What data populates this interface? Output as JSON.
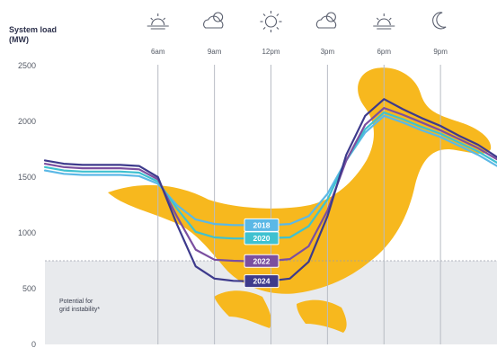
{
  "chart_data": {
    "type": "line",
    "ylabel_lines": [
      "System load",
      "(MW)"
    ],
    "yticks": [
      "2500",
      "2000",
      "1500",
      "1000",
      "500",
      "0"
    ],
    "ylim": [
      0,
      2500
    ],
    "xlim": [
      0,
      24
    ],
    "time_markers": [
      {
        "label": "6am",
        "hour": 6,
        "icon": "sunrise-icon"
      },
      {
        "label": "9am",
        "hour": 9,
        "icon": "partly-cloudy-icon"
      },
      {
        "label": "12pm",
        "hour": 12,
        "icon": "sun-icon"
      },
      {
        "label": "3pm",
        "hour": 15,
        "icon": "partly-cloudy-icon"
      },
      {
        "label": "6pm",
        "hour": 18,
        "icon": "sunset-icon"
      },
      {
        "label": "9pm",
        "hour": 21,
        "icon": "moon-icon"
      }
    ],
    "threshold": 750,
    "annotation_lines": [
      "Potential for",
      "grid instability*"
    ],
    "x": [
      0,
      1,
      2,
      3,
      4,
      5,
      6,
      7,
      8,
      9,
      10,
      11,
      12,
      13,
      14,
      15,
      16,
      17,
      18,
      19,
      20,
      21,
      22,
      23,
      24
    ],
    "series": [
      {
        "name": "2018",
        "color": "#5bb8e6",
        "label_hour": 11.5,
        "values": [
          1560,
          1530,
          1520,
          1520,
          1520,
          1510,
          1440,
          1250,
          1120,
          1080,
          1070,
          1070,
          1070,
          1080,
          1150,
          1350,
          1650,
          1900,
          2050,
          1990,
          1920,
          1860,
          1780,
          1700,
          1600
        ]
      },
      {
        "name": "2020",
        "color": "#3fc1d0",
        "label_hour": 11.5,
        "values": [
          1590,
          1560,
          1550,
          1550,
          1550,
          1540,
          1460,
          1220,
          1010,
          960,
          950,
          950,
          955,
          960,
          1060,
          1300,
          1650,
          1930,
          2080,
          2020,
          1950,
          1890,
          1810,
          1730,
          1630
        ]
      },
      {
        "name": "2022",
        "color": "#7b4fa0",
        "label_hour": 11.5,
        "values": [
          1620,
          1590,
          1580,
          1580,
          1580,
          1570,
          1480,
          1150,
          850,
          760,
          750,
          745,
          750,
          765,
          880,
          1200,
          1650,
          1970,
          2120,
          2060,
          1990,
          1920,
          1840,
          1760,
          1660
        ]
      },
      {
        "name": "2024",
        "color": "#3d3a8c",
        "label_hour": 11.5,
        "values": [
          1650,
          1620,
          1610,
          1610,
          1610,
          1600,
          1500,
          1080,
          700,
          590,
          570,
          565,
          570,
          590,
          740,
          1150,
          1700,
          2050,
          2200,
          2110,
          2030,
          1960,
          1870,
          1790,
          1680
        ]
      }
    ],
    "colors": {
      "duck": "#f7b81e",
      "threshold_band": "#e8eaed",
      "vline": "#b8bcc4",
      "axis_text": "#555b66"
    }
  }
}
